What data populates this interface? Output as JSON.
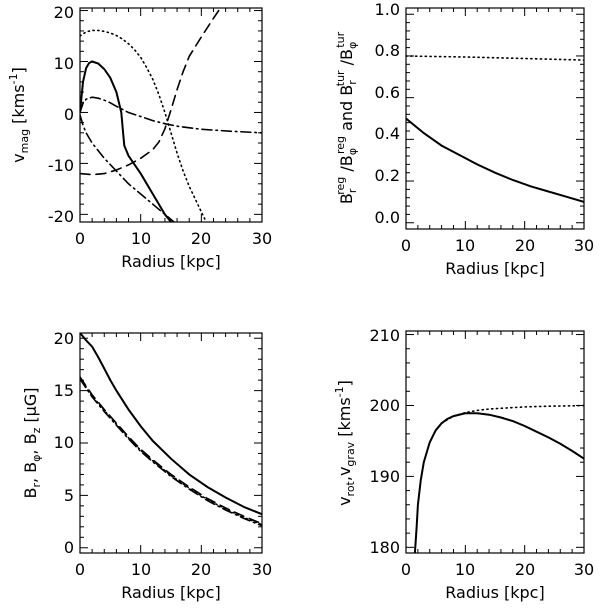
{
  "chart_data": [
    {
      "id": "vmag",
      "type": "line",
      "xlabel": "Radius [kpc]",
      "ylabel": {
        "main": "v",
        "sub": "mag",
        "rest": " [kms",
        "sup": "-1",
        "end": "]"
      },
      "xlim": [
        0,
        30
      ],
      "ylim": [
        -21.5,
        20.5
      ],
      "xticks": [
        0,
        10,
        20,
        30
      ],
      "yticks": [
        -20,
        -10,
        0,
        10,
        20
      ],
      "xtick_labels": [
        "0",
        "10",
        "20",
        "30"
      ],
      "ytick_labels": [
        "-20",
        "-10",
        "0",
        "10",
        "20"
      ],
      "series": [
        {
          "name": "solid",
          "style": "solid",
          "x": [
            0,
            0.5,
            1,
            1.5,
            2,
            3,
            4,
            5,
            6,
            6.8,
            7.1,
            7.3,
            8,
            10,
            12,
            14,
            16
          ],
          "y": [
            0,
            6,
            8.7,
            9.7,
            10,
            9.6,
            8.5,
            6.8,
            4,
            0,
            -4,
            -6.5,
            -8.5,
            -12,
            -16,
            -20,
            -23
          ]
        },
        {
          "name": "dotted",
          "style": "dotted",
          "x": [
            0,
            1,
            2,
            3,
            4,
            5,
            6,
            7,
            8,
            9,
            10,
            11,
            12,
            13,
            14,
            15,
            16,
            17,
            18,
            19,
            20,
            21
          ],
          "y": [
            15,
            15.8,
            16.1,
            16.1,
            15.9,
            15.6,
            15.1,
            14.4,
            13.5,
            12.3,
            10.8,
            8.8,
            6.5,
            3.5,
            0,
            -4,
            -8,
            -11.5,
            -14.5,
            -17,
            -19.5,
            -22
          ]
        },
        {
          "name": "dashed",
          "style": "dashed",
          "x": [
            0,
            2,
            4,
            6,
            8,
            10,
            12,
            13,
            14,
            15,
            16,
            17,
            18,
            20,
            22,
            24
          ],
          "y": [
            -12,
            -12.2,
            -12,
            -11.3,
            -10.3,
            -9,
            -7.3,
            -5.8,
            -3.2,
            0.5,
            4.5,
            8,
            11,
            14.8,
            18.5,
            22
          ]
        },
        {
          "name": "dash-dot",
          "style": "dashdot",
          "x": [
            0,
            0.5,
            1,
            2,
            3,
            4,
            5,
            6,
            8,
            10,
            12,
            14,
            16,
            20,
            25,
            30
          ],
          "y": [
            0,
            1.8,
            2.6,
            3,
            2.8,
            2.4,
            1.9,
            1.2,
            0,
            -0.8,
            -1.6,
            -2.2,
            -2.7,
            -3.3,
            -3.7,
            -4
          ]
        },
        {
          "name": "dash-dot-2",
          "style": "dashdot",
          "x": [
            0,
            0.5,
            1,
            2,
            4,
            6,
            8,
            10,
            12,
            14,
            15.5
          ],
          "y": [
            -0.5,
            -2.5,
            -4,
            -6,
            -9,
            -11.5,
            -14,
            -16,
            -18,
            -20,
            -21.5
          ]
        }
      ]
    },
    {
      "id": "ratio",
      "type": "line",
      "xlabel": "Radius [kpc]",
      "ylabel": {
        "main": "B",
        "sub": "r",
        "sup": "reg",
        "rest": " /B",
        "sub2": "φ",
        "sup2": "reg",
        "mid": " and  B",
        "sub3": "r",
        "sup3": "tur",
        "rest2": " /B",
        "sub4": "φ",
        "sup4": "tur"
      },
      "xlim": [
        0,
        30
      ],
      "ylim": [
        -0.03,
        1.03
      ],
      "xticks": [
        0,
        10,
        20,
        30
      ],
      "yticks": [
        0.0,
        0.2,
        0.4,
        0.6,
        0.8,
        1.0
      ],
      "xtick_labels": [
        "0",
        "10",
        "20",
        "30"
      ],
      "ytick_labels": [
        "0.0",
        "0.2",
        "0.4",
        "0.6",
        "0.8",
        "1.0"
      ],
      "series": [
        {
          "name": "solid",
          "style": "solid",
          "x": [
            0,
            3,
            6,
            9,
            12,
            15,
            18,
            21,
            24,
            27,
            30
          ],
          "y": [
            0.5,
            0.43,
            0.37,
            0.325,
            0.28,
            0.24,
            0.205,
            0.175,
            0.15,
            0.125,
            0.1
          ]
        },
        {
          "name": "dotted",
          "style": "dotted",
          "x": [
            0,
            10,
            20,
            30
          ],
          "y": [
            0.8,
            0.795,
            0.788,
            0.78
          ]
        }
      ]
    },
    {
      "id": "bfield",
      "type": "line",
      "xlabel": "Radius [kpc]",
      "ylabel": {
        "main": "B",
        "sub": "r",
        "rest": ", B",
        "sub2": "φ",
        "mid": ", B",
        "sub3": "z",
        "end": " [μG]"
      },
      "xlim": [
        0,
        30
      ],
      "ylim": [
        -0.5,
        20.5
      ],
      "xticks": [
        0,
        10,
        20,
        30
      ],
      "yticks": [
        0,
        5,
        10,
        15,
        20
      ],
      "xtick_labels": [
        "0",
        "10",
        "20",
        "30"
      ],
      "ytick_labels": [
        "0",
        "5",
        "10",
        "15",
        "20"
      ],
      "series": [
        {
          "name": "solid",
          "style": "solid",
          "x": [
            0,
            1,
            2,
            3,
            4,
            5,
            6,
            8,
            10,
            12,
            15,
            18,
            21,
            24,
            27,
            30
          ],
          "y": [
            20.5,
            19.8,
            19.2,
            18.2,
            17.1,
            16,
            15,
            13.2,
            11.6,
            10.2,
            8.5,
            7,
            5.8,
            4.8,
            3.9,
            3.2
          ]
        },
        {
          "name": "dashed",
          "style": "dashed",
          "x": [
            0,
            2,
            4,
            6,
            8,
            10,
            12,
            15,
            18,
            21,
            24,
            27,
            30
          ],
          "y": [
            16.3,
            14.6,
            13.2,
            11.9,
            10.6,
            9.4,
            8.4,
            7,
            5.8,
            4.7,
            3.8,
            3,
            2.3
          ]
        },
        {
          "name": "dotted",
          "style": "dotted",
          "x": [
            0,
            2,
            4,
            6,
            8,
            10,
            12,
            15,
            18,
            21,
            24,
            27,
            30
          ],
          "y": [
            16.2,
            14.5,
            13.1,
            11.8,
            10.5,
            9.3,
            8.3,
            6.9,
            5.7,
            4.6,
            3.7,
            2.9,
            2.2
          ]
        },
        {
          "name": "dash-dot",
          "style": "dashdot",
          "x": [
            0,
            2,
            4,
            6,
            8,
            10,
            12,
            15,
            18,
            21,
            24,
            27,
            30
          ],
          "y": [
            16.1,
            14.4,
            13,
            11.7,
            10.4,
            9.2,
            8.2,
            6.8,
            5.6,
            4.5,
            3.6,
            2.8,
            2.1
          ]
        }
      ]
    },
    {
      "id": "vrot",
      "type": "line",
      "xlabel": "Radius [kpc]",
      "ylabel": {
        "main": "v",
        "sub": "rot",
        "rest": ",v",
        "sub2": "grav",
        "mid": " [kms",
        "sup": "-1",
        "end": "]"
      },
      "xlim": [
        0,
        30
      ],
      "ylim": [
        179.2,
        210.5
      ],
      "xticks": [
        0,
        10,
        20,
        30
      ],
      "yticks": [
        180,
        190,
        200,
        210
      ],
      "xtick_labels": [
        "0",
        "10",
        "20",
        "30"
      ],
      "ytick_labels": [
        "180",
        "190",
        "200",
        "210"
      ],
      "series": [
        {
          "name": "solid",
          "style": "solid",
          "x": [
            1.5,
            1.8,
            2,
            2.5,
            3,
            4,
            5,
            6,
            7,
            8,
            10,
            12,
            14,
            16,
            18,
            20,
            22,
            24,
            26,
            28,
            30
          ],
          "y": [
            179.2,
            183,
            186,
            189.5,
            192,
            194.8,
            196.5,
            197.5,
            198.1,
            198.5,
            198.9,
            198.9,
            198.7,
            198.3,
            197.8,
            197.1,
            196.3,
            195.5,
            194.6,
            193.6,
            192.5
          ]
        },
        {
          "name": "dotted",
          "style": "dotted",
          "x": [
            6,
            8,
            10,
            12,
            14,
            16,
            18,
            20,
            22,
            24,
            26,
            28,
            30
          ],
          "y": [
            197.5,
            198.5,
            199,
            199.3,
            199.5,
            199.6,
            199.7,
            199.8,
            199.85,
            199.9,
            199.93,
            199.96,
            200
          ]
        }
      ]
    }
  ]
}
